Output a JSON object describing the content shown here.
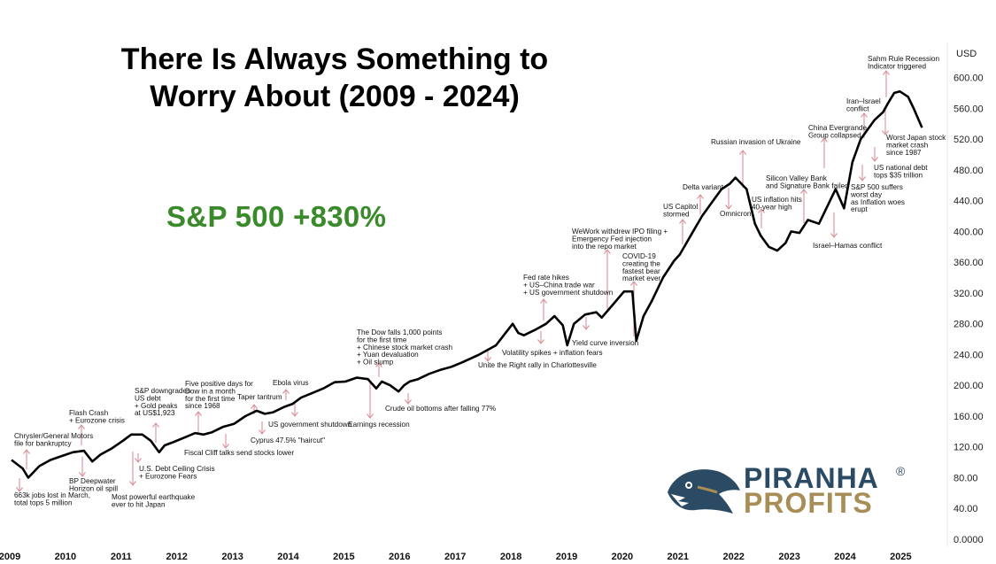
{
  "title_lines": [
    "There Is Always Something to",
    "Worry About (2009 - 2024)"
  ],
  "headline": "S&P 500 +830%",
  "logo": {
    "line1": "PIRANHA",
    "line2": "PROFITS",
    "reg": "®"
  },
  "colors": {
    "line": "#000000",
    "arrow": "#d9909a",
    "headline": "#3a8a2b",
    "logo_blue": "#2b4a63",
    "logo_gold": "#a88d56"
  },
  "chart_data": {
    "type": "line",
    "currency_label": "USD",
    "ylim": [
      0,
      630
    ],
    "y_ticks": [
      "0.0000",
      "40.00",
      "80.00",
      "120.00",
      "160.00",
      "200.00",
      "240.00",
      "280.00",
      "320.00",
      "360.00",
      "400.00",
      "440.00",
      "480.00",
      "520.00",
      "560.00",
      "600.00"
    ],
    "x_ticks": [
      "2009",
      "2010",
      "2011",
      "2012",
      "2013",
      "2014",
      "2015",
      "2016",
      "2017",
      "2018",
      "2019",
      "2020",
      "2021",
      "2022",
      "2023",
      "2024",
      "2025"
    ],
    "series": [
      {
        "x": [
          2009.0,
          2009.2,
          2009.3,
          2009.5,
          2009.7,
          2009.9,
          2010.1,
          2010.3,
          2010.45,
          2010.6,
          2010.8,
          2011.0,
          2011.15,
          2011.35,
          2011.5,
          2011.65,
          2011.75,
          2011.9,
          2012.1,
          2012.3,
          2012.45,
          2012.6,
          2012.8,
          2013.0,
          2013.2,
          2013.4,
          2013.55,
          2013.7,
          2013.9,
          2014.05,
          2014.2,
          2014.4,
          2014.6,
          2014.8,
          2015.0,
          2015.2,
          2015.4,
          2015.55,
          2015.65,
          2015.8,
          2015.95,
          2016.05,
          2016.15,
          2016.3,
          2016.5,
          2016.7,
          2016.9,
          2017.1,
          2017.4,
          2017.7,
          2018.0,
          2018.1,
          2018.2,
          2018.4,
          2018.6,
          2018.75,
          2018.9,
          2018.98,
          2019.1,
          2019.3,
          2019.5,
          2019.6,
          2019.8,
          2020.0,
          2020.15,
          2020.22,
          2020.35,
          2020.5,
          2020.7,
          2020.9,
          2021.0,
          2021.2,
          2021.4,
          2021.6,
          2021.75,
          2021.9,
          2022.0,
          2022.2,
          2022.35,
          2022.45,
          2022.6,
          2022.75,
          2022.9,
          2023.0,
          2023.15,
          2023.3,
          2023.5,
          2023.7,
          2023.8,
          2023.95,
          2024.1,
          2024.25,
          2024.5,
          2024.65,
          2024.75,
          2024.85,
          2024.95,
          2025.1,
          2025.2,
          2025.35
        ],
        "values": [
          103,
          92,
          80,
          95,
          103,
          108,
          113,
          115,
          101,
          110,
          118,
          128,
          136,
          136,
          128,
          113,
          122,
          126,
          132,
          138,
          136,
          139,
          146,
          150,
          160,
          167,
          163,
          165,
          172,
          176,
          184,
          190,
          196,
          204,
          205,
          210,
          208,
          196,
          205,
          200,
          192,
          200,
          205,
          208,
          215,
          220,
          224,
          230,
          240,
          252,
          280,
          268,
          265,
          272,
          280,
          290,
          278,
          252,
          280,
          292,
          295,
          288,
          305,
          322,
          322,
          258,
          290,
          310,
          340,
          362,
          370,
          395,
          420,
          440,
          455,
          462,
          470,
          455,
          410,
          395,
          380,
          375,
          385,
          400,
          398,
          415,
          410,
          440,
          455,
          430,
          490,
          520,
          545,
          555,
          568,
          580,
          582,
          575,
          560,
          535
        ]
      }
    ],
    "annotations": [
      {
        "text": [
          "Chrysler/General Motors",
          "file for bankruptcy"
        ]
      },
      {
        "text": [
          "663k jobs lost in March,",
          "total tops 5 million"
        ]
      },
      {
        "text": [
          "Flash Crash",
          "+ Eurozone crisis"
        ]
      },
      {
        "text": [
          "BP Deepwater",
          "Horizon oil spill"
        ]
      },
      {
        "text": [
          "S&P downgrades",
          "US debt",
          "+ Gold peaks",
          "at US$1,923"
        ]
      },
      {
        "text": [
          "U.S. Debt Ceiling Crisis",
          "+ Eurozone Fears"
        ]
      },
      {
        "text": [
          "Most powerful earthquake",
          "ever to hit Japan"
        ]
      },
      {
        "text": [
          "Five positive days for",
          "Dow in a month",
          "for the first time",
          "since 1968"
        ]
      },
      {
        "text": [
          "Fiscal Cliff talks send stocks lower"
        ]
      },
      {
        "text": [
          "Taper tantrum"
        ]
      },
      {
        "text": [
          "Cyprus 47.5% \"haircut\""
        ]
      },
      {
        "text": [
          "Ebola virus"
        ]
      },
      {
        "text": [
          "US government shutdown"
        ]
      },
      {
        "text": [
          "Earnings recession"
        ]
      },
      {
        "text": [
          "The Dow falls 1,000 points",
          "for the first time",
          "+ Chinese stock market crash",
          "+ Yuan devaluation",
          "+ Oil slump"
        ]
      },
      {
        "text": [
          "Crude oil bottoms after falling 77%"
        ]
      },
      {
        "text": [
          "Unite the Right rally in Charlottesville"
        ]
      },
      {
        "text": [
          "Volatility spikes + inflation fears"
        ]
      },
      {
        "text": [
          "Fed rate hikes",
          "+ US–China trade war",
          "+ US government shutdown"
        ]
      },
      {
        "text": [
          "Yield curve inversion"
        ]
      },
      {
        "text": [
          "WeWork withdrew IPO filing +",
          "Emergency Fed injection",
          "into the repo market"
        ]
      },
      {
        "text": [
          "COVID-19",
          "creating the",
          "fastest bear",
          "market ever"
        ]
      },
      {
        "text": [
          "US Capitol",
          "stormed"
        ]
      },
      {
        "text": [
          "Delta variant"
        ]
      },
      {
        "text": [
          "Omnicron"
        ]
      },
      {
        "text": [
          "Russian invasion of Ukraine"
        ]
      },
      {
        "text": [
          "US inflation hits",
          "40-year high"
        ]
      },
      {
        "text": [
          "Silicon Valley Bank",
          "and Signature Bank failed"
        ]
      },
      {
        "text": [
          "China Evergrande",
          "Group collapsed"
        ]
      },
      {
        "text": [
          "Israel–Hamas conflict"
        ]
      },
      {
        "text": [
          "Iran–Israel",
          "conflict"
        ]
      },
      {
        "text": [
          "S&P 500 suffers",
          "worst day",
          "as Inflation woes",
          "erupt"
        ]
      },
      {
        "text": [
          "US national debt",
          "tops $35 trillion"
        ]
      },
      {
        "text": [
          "Sahm Rule Recession",
          "Indicator triggered"
        ]
      },
      {
        "text": [
          "Worst Japan stock",
          "market crash",
          "since 1987"
        ]
      }
    ]
  }
}
